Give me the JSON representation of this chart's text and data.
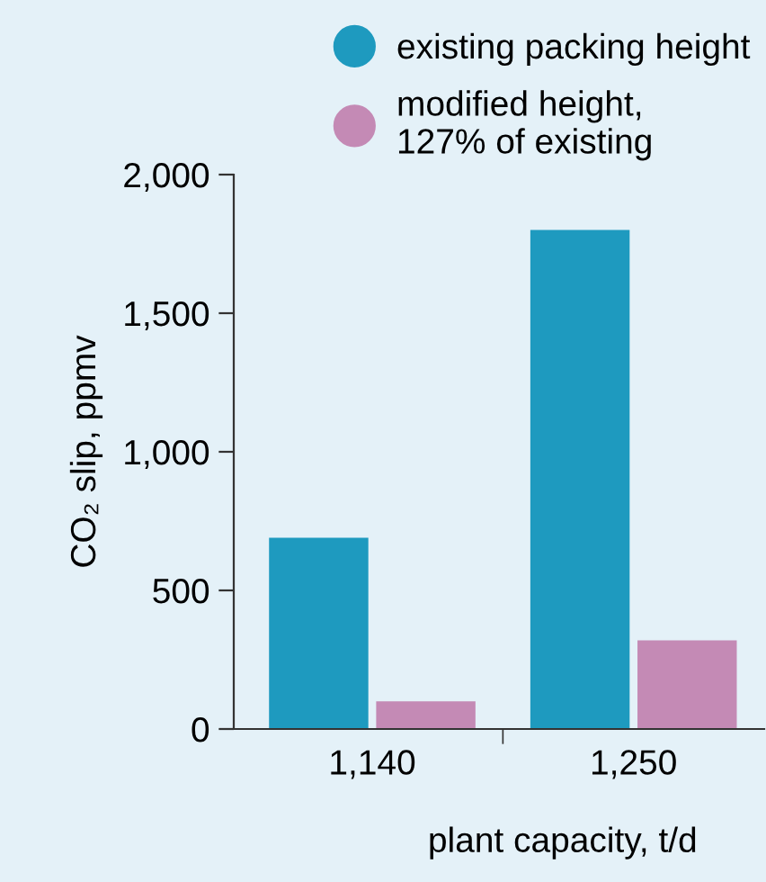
{
  "chart_data": {
    "type": "bar",
    "xlabel": "plant capacity, t/d",
    "ylabel": "CO₂ slip, ppmv",
    "categories": [
      "1,140",
      "1,250"
    ],
    "series": [
      {
        "name": "existing packing height",
        "color": "#1e9abf",
        "values": [
          690,
          1800
        ]
      },
      {
        "name": "modified height,\n127% of existing",
        "color": "#c48ab5",
        "values": [
          100,
          320
        ]
      }
    ],
    "ylim": [
      0,
      2000
    ],
    "yticks": [
      {
        "value": 0,
        "label": "0"
      },
      {
        "value": 500,
        "label": "500"
      },
      {
        "value": 1000,
        "label": "1,000"
      },
      {
        "value": 1500,
        "label": "1,500"
      },
      {
        "value": 2000,
        "label": "2,000"
      }
    ],
    "grid": false,
    "legend": "top",
    "marker": "circle"
  }
}
